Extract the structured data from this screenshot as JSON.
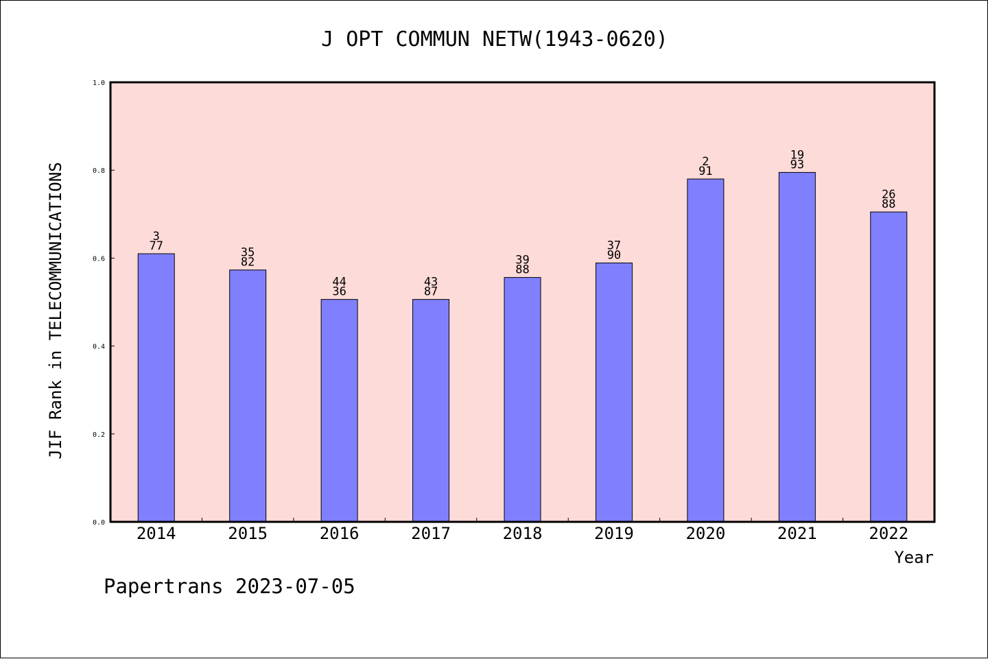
{
  "chart_data": {
    "type": "bar",
    "title": "J OPT COMMUN NETW(1943-0620)",
    "xlabel": "Year",
    "ylabel": "JIF Rank in TELECOMMUNICATIONS",
    "ylim": [
      0,
      1.0
    ],
    "yticks": [
      "0.0",
      "0.2",
      "0.4",
      "0.6",
      "0.8",
      "1.0"
    ],
    "categories": [
      "2014",
      "2015",
      "2016",
      "2017",
      "2018",
      "2019",
      "2020",
      "2021",
      "2022"
    ],
    "values": [
      0.61,
      0.573,
      0.506,
      0.506,
      0.556,
      0.589,
      0.78,
      0.795,
      0.705
    ],
    "bar_labels": [
      [
        "3",
        "77"
      ],
      [
        "35",
        "82"
      ],
      [
        "44",
        "36"
      ],
      [
        "43",
        "87"
      ],
      [
        "39",
        "88"
      ],
      [
        "37",
        "90"
      ],
      [
        "2",
        "91"
      ],
      [
        "19",
        "93"
      ],
      [
        "26",
        "88"
      ]
    ],
    "grid": false,
    "colors": {
      "bar": "#8080ff",
      "plot_background": "#fddbd8",
      "axis": "#000000"
    }
  },
  "footer": "Papertrans 2023-07-05"
}
